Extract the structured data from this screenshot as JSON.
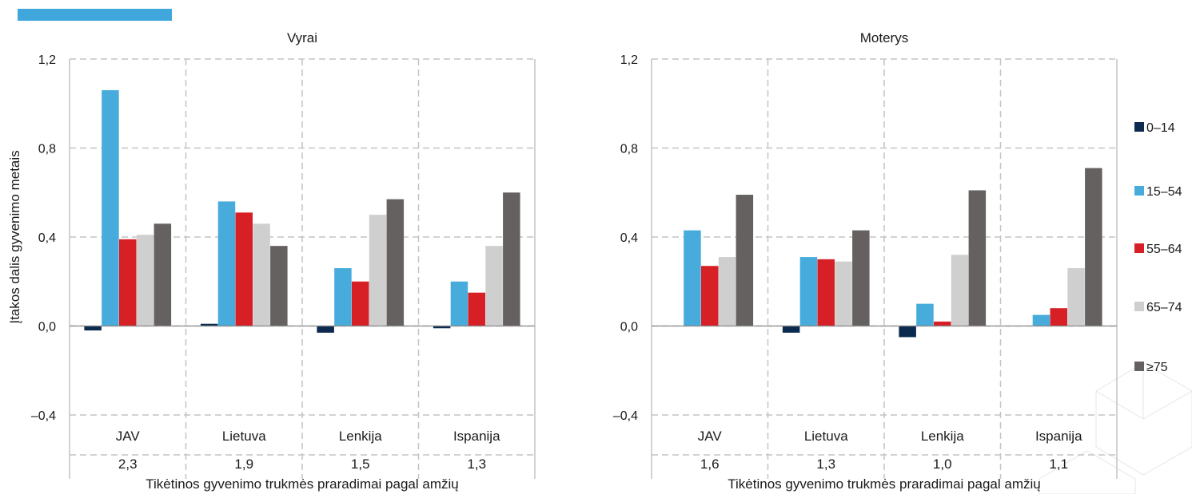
{
  "colors": {
    "s0_14": "#0b2a4e",
    "s15_54": "#47acdc",
    "s55_64": "#d71f26",
    "s65_74": "#cfcfcf",
    "s75": "#666161",
    "grid": "#c4c4c4",
    "accent_bar": "#3fa7dc"
  },
  "legend": [
    "0–14",
    "15–54",
    "55–64",
    "65–74",
    "≥75"
  ],
  "ylabel": "Įtakos dalis gyvenimo metais",
  "chart_data": [
    {
      "type": "bar",
      "title": "Vyrai",
      "xlabel": "Tikėtinos gyvenimo trukmės praradimai pagal amžių",
      "ylabel": "Įtakos dalis gyvenimo metais",
      "yticks": [
        "1,2",
        "0,8",
        "0,4",
        "0,0",
        "–0,4"
      ],
      "ylim": [
        -0.4,
        1.2
      ],
      "categories": [
        "JAV",
        "Lietuva",
        "Lenkija",
        "Ispanija"
      ],
      "totals": [
        "2,3",
        "1,9",
        "1,5",
        "1,3"
      ],
      "series": [
        {
          "name": "0–14",
          "values": [
            -0.02,
            0.01,
            -0.03,
            -0.01
          ]
        },
        {
          "name": "15–54",
          "values": [
            1.06,
            0.56,
            0.26,
            0.2
          ]
        },
        {
          "name": "55–64",
          "values": [
            0.39,
            0.51,
            0.2,
            0.15
          ]
        },
        {
          "name": "65–74",
          "values": [
            0.41,
            0.46,
            0.5,
            0.36
          ]
        },
        {
          "name": "≥75",
          "values": [
            0.46,
            0.36,
            0.57,
            0.6
          ]
        }
      ]
    },
    {
      "type": "bar",
      "title": "Moterys",
      "xlabel": "Tikėtinos gyvenimo trukmės praradimai pagal amžių",
      "yticks": [
        "1,2",
        "0,8",
        "0,4",
        "0,0",
        "–0,4"
      ],
      "ylim": [
        -0.4,
        1.2
      ],
      "categories": [
        "JAV",
        "Lietuva",
        "Lenkija",
        "Ispanija"
      ],
      "totals": [
        "1,6",
        "1,3",
        "1,0",
        "1,1"
      ],
      "series": [
        {
          "name": "0–14",
          "values": [
            0.0,
            -0.03,
            -0.05,
            0.0
          ]
        },
        {
          "name": "15–54",
          "values": [
            0.43,
            0.31,
            0.1,
            0.05
          ]
        },
        {
          "name": "55–64",
          "values": [
            0.27,
            0.3,
            0.02,
            0.08
          ]
        },
        {
          "name": "65–74",
          "values": [
            0.31,
            0.29,
            0.32,
            0.26
          ]
        },
        {
          "name": "≥75",
          "values": [
            0.59,
            0.43,
            0.61,
            0.71
          ]
        }
      ]
    }
  ]
}
